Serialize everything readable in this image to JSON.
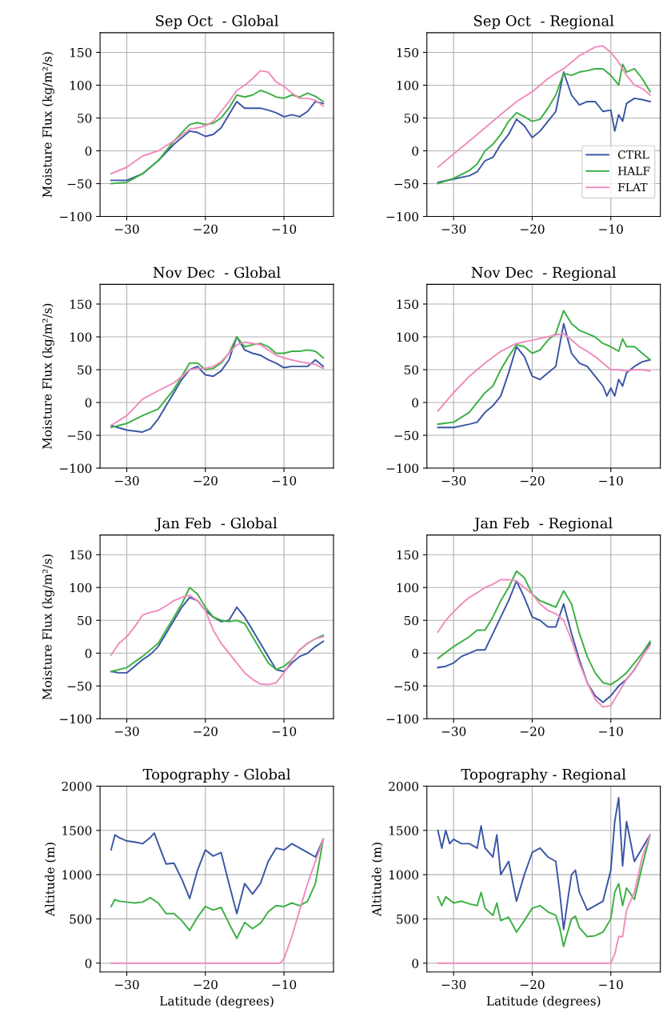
{
  "chart_data": [
    {
      "type": "line",
      "title": "Sep Oct  - Global",
      "ylabel": "Moisture Flux (kg/m²/s)",
      "xlim": [
        -33.4,
        -3.7
      ],
      "xticks": [
        -30,
        -20,
        -10
      ],
      "ylim": [
        -100,
        180
      ],
      "yticks": [
        -100,
        -50,
        0,
        50,
        100,
        150
      ],
      "grid": true,
      "legend": false,
      "series": [
        {
          "color": "#3a56a5",
          "x": [
            -32,
            -30,
            -28,
            -26,
            -24,
            -22,
            -21,
            -20,
            -19,
            -18,
            -17,
            -16,
            -15,
            -14,
            -13,
            -12,
            -11,
            -10,
            -9,
            -8,
            -7,
            -6,
            -5
          ],
          "values": [
            -45,
            -45,
            -35,
            -15,
            10,
            30,
            28,
            22,
            25,
            35,
            55,
            75,
            65,
            65,
            65,
            62,
            58,
            52,
            55,
            52,
            60,
            75,
            72
          ]
        },
        {
          "color": "#3cb043",
          "x": [
            -32,
            -30,
            -28,
            -26,
            -24,
            -22,
            -21,
            -20,
            -19,
            -18,
            -17,
            -16,
            -15,
            -14,
            -13,
            -12,
            -11,
            -10,
            -9,
            -8,
            -7,
            -6,
            -5
          ],
          "values": [
            -50,
            -48,
            -35,
            -15,
            15,
            40,
            43,
            40,
            42,
            50,
            65,
            85,
            82,
            85,
            92,
            88,
            82,
            80,
            85,
            82,
            88,
            83,
            75
          ]
        },
        {
          "color": "#f08cbe",
          "x": [
            -32,
            -30,
            -28,
            -26,
            -24,
            -22,
            -21,
            -20,
            -19,
            -18,
            -17,
            -16,
            -15,
            -14,
            -13,
            -12,
            -11,
            -10,
            -9,
            -8,
            -7,
            -6,
            -5
          ],
          "values": [
            -35,
            -25,
            -8,
            0,
            15,
            33,
            35,
            38,
            45,
            60,
            75,
            92,
            100,
            110,
            122,
            120,
            105,
            98,
            88,
            80,
            80,
            77,
            68
          ]
        }
      ]
    },
    {
      "type": "line",
      "title": "Sep Oct  - Regional",
      "xlim": [
        -33.4,
        -3.7
      ],
      "xticks": [
        -30,
        -20,
        -10
      ],
      "ylim": [
        -100,
        180
      ],
      "yticks": [
        -100,
        -50,
        0,
        50,
        100,
        150
      ],
      "grid": true,
      "legend": "lower right",
      "series": [
        {
          "name": "CTRL",
          "color": "#3a56a5",
          "x": [
            -32,
            -30,
            -28,
            -27,
            -26,
            -25,
            -24,
            -23,
            -22,
            -21,
            -20,
            -19,
            -18,
            -17,
            -16,
            -15,
            -14,
            -13,
            -12,
            -11,
            -10,
            -9.5,
            -9,
            -8.5,
            -8,
            -7,
            -6,
            -5
          ],
          "values": [
            -48,
            -43,
            -38,
            -32,
            -15,
            -10,
            10,
            25,
            48,
            38,
            20,
            30,
            45,
            60,
            120,
            85,
            70,
            75,
            75,
            60,
            62,
            30,
            55,
            45,
            72,
            80,
            78,
            75
          ]
        },
        {
          "name": "HALF",
          "color": "#3cb043",
          "x": [
            -32,
            -30,
            -28,
            -27,
            -26,
            -25,
            -24,
            -23,
            -22,
            -21,
            -20,
            -19,
            -18,
            -17,
            -16,
            -15,
            -14,
            -13,
            -12,
            -11,
            -10,
            -9,
            -8.5,
            -8,
            -7,
            -6,
            -5
          ],
          "values": [
            -50,
            -42,
            -30,
            -20,
            0,
            10,
            25,
            45,
            58,
            52,
            45,
            48,
            65,
            85,
            118,
            115,
            120,
            122,
            125,
            125,
            115,
            100,
            132,
            120,
            125,
            110,
            90
          ]
        },
        {
          "name": "FLAT",
          "color": "#f08cbe",
          "x": [
            -32,
            -30,
            -28,
            -26,
            -24,
            -22,
            -20,
            -18,
            -17,
            -16,
            -14,
            -12,
            -11,
            -10,
            -9,
            -8,
            -7,
            -6,
            -5
          ],
          "values": [
            -25,
            -5,
            15,
            35,
            55,
            75,
            90,
            110,
            118,
            125,
            145,
            158,
            160,
            150,
            135,
            115,
            100,
            95,
            85
          ]
        }
      ]
    },
    {
      "type": "line",
      "title": "Nov Dec  - Global",
      "ylabel": "Moisture Flux (kg/m²/s)",
      "xlim": [
        -33.4,
        -3.7
      ],
      "xticks": [
        -30,
        -20,
        -10
      ],
      "ylim": [
        -100,
        180
      ],
      "yticks": [
        -100,
        -50,
        0,
        50,
        100,
        150
      ],
      "grid": true,
      "legend": false,
      "series": [
        {
          "color": "#3a56a5",
          "x": [
            -32,
            -30,
            -28,
            -27,
            -26,
            -25,
            -24,
            -23,
            -22,
            -21,
            -20,
            -19,
            -18,
            -17,
            -16,
            -15,
            -14,
            -13,
            -12,
            -11,
            -10,
            -9,
            -8,
            -7,
            -6,
            -5
          ],
          "values": [
            -35,
            -42,
            -45,
            -40,
            -25,
            -5,
            15,
            35,
            50,
            55,
            42,
            40,
            48,
            65,
            100,
            80,
            75,
            72,
            65,
            60,
            53,
            55,
            55,
            55,
            65,
            55
          ]
        },
        {
          "color": "#3cb043",
          "x": [
            -32,
            -30,
            -28,
            -26,
            -24,
            -22,
            -21,
            -20,
            -19,
            -18,
            -17,
            -16,
            -15,
            -14,
            -13,
            -12,
            -11,
            -10,
            -9,
            -8,
            -7,
            -6,
            -5
          ],
          "values": [
            -38,
            -32,
            -20,
            -10,
            20,
            60,
            60,
            50,
            52,
            60,
            75,
            100,
            85,
            88,
            90,
            85,
            75,
            75,
            78,
            78,
            80,
            78,
            68
          ]
        },
        {
          "color": "#f08cbe",
          "x": [
            -32,
            -30,
            -28,
            -26,
            -24,
            -22,
            -21,
            -20,
            -19,
            -18,
            -17,
            -16,
            -15,
            -14,
            -13,
            -12,
            -11,
            -10,
            -9,
            -8,
            -7,
            -6,
            -5
          ],
          "values": [
            -35,
            -20,
            5,
            18,
            30,
            50,
            52,
            52,
            55,
            62,
            75,
            88,
            92,
            90,
            88,
            80,
            72,
            68,
            65,
            62,
            60,
            58,
            52
          ]
        }
      ]
    },
    {
      "type": "line",
      "title": "Nov Dec  - Regional",
      "xlim": [
        -33.4,
        -3.7
      ],
      "xticks": [
        -30,
        -20,
        -10
      ],
      "ylim": [
        -100,
        180
      ],
      "yticks": [
        -100,
        -50,
        0,
        50,
        100,
        150
      ],
      "grid": true,
      "legend": false,
      "series": [
        {
          "color": "#3a56a5",
          "x": [
            -32,
            -30,
            -28,
            -27,
            -26,
            -25,
            -24,
            -23,
            -22,
            -21,
            -20,
            -19,
            -18,
            -17,
            -16,
            -15,
            -14,
            -13,
            -12,
            -11,
            -10.5,
            -10,
            -9.5,
            -9,
            -8.5,
            -8,
            -7,
            -6,
            -5
          ],
          "values": [
            -38,
            -38,
            -33,
            -30,
            -15,
            -5,
            10,
            45,
            85,
            70,
            40,
            35,
            45,
            55,
            120,
            75,
            60,
            55,
            40,
            25,
            10,
            22,
            10,
            35,
            25,
            45,
            55,
            62,
            65
          ]
        },
        {
          "color": "#3cb043",
          "x": [
            -32,
            -30,
            -28,
            -26,
            -25,
            -24,
            -23,
            -22,
            -21,
            -20,
            -19,
            -18,
            -17,
            -16,
            -15,
            -14,
            -13,
            -12,
            -11,
            -10,
            -9,
            -8.5,
            -8,
            -7,
            -6,
            -5
          ],
          "values": [
            -33,
            -30,
            -15,
            15,
            25,
            50,
            70,
            88,
            85,
            75,
            80,
            95,
            105,
            140,
            120,
            110,
            105,
            100,
            90,
            85,
            78,
            97,
            85,
            85,
            75,
            65
          ]
        },
        {
          "color": "#f08cbe",
          "x": [
            -32,
            -30,
            -28,
            -26,
            -24,
            -22,
            -20,
            -18,
            -17,
            -16,
            -15,
            -14,
            -13,
            -12,
            -11,
            -10,
            -9,
            -8,
            -7,
            -6,
            -5
          ],
          "values": [
            -13,
            15,
            40,
            60,
            78,
            90,
            95,
            100,
            103,
            105,
            95,
            85,
            78,
            70,
            60,
            50,
            50,
            48,
            50,
            50,
            48
          ]
        }
      ]
    },
    {
      "type": "line",
      "title": "Jan Feb  - Global",
      "ylabel": "Moisture Flux (kg/m²/s)",
      "xlim": [
        -33.4,
        -3.7
      ],
      "xticks": [
        -30,
        -20,
        -10
      ],
      "ylim": [
        -100,
        180
      ],
      "yticks": [
        -100,
        -50,
        0,
        50,
        100,
        150
      ],
      "grid": true,
      "legend": false,
      "series": [
        {
          "color": "#3a56a5",
          "x": [
            -32,
            -31,
            -30,
            -29,
            -28,
            -27,
            -26,
            -25,
            -24,
            -23,
            -22,
            -21,
            -20,
            -19,
            -18,
            -17,
            -16,
            -15,
            -14,
            -13,
            -12,
            -11,
            -10,
            -9,
            -8,
            -7,
            -6,
            -5
          ],
          "values": [
            -28,
            -30,
            -30,
            -20,
            -10,
            -2,
            10,
            30,
            50,
            70,
            85,
            80,
            65,
            55,
            48,
            50,
            70,
            55,
            35,
            15,
            -5,
            -25,
            -28,
            -15,
            -5,
            0,
            10,
            18
          ]
        },
        {
          "color": "#3cb043",
          "x": [
            -32,
            -30,
            -28,
            -26,
            -25,
            -24,
            -23,
            -22,
            -21,
            -20,
            -19,
            -18,
            -17,
            -16,
            -15,
            -14,
            -13,
            -12,
            -11,
            -10,
            -9,
            -8,
            -7,
            -6,
            -5
          ],
          "values": [
            -28,
            -22,
            -5,
            15,
            35,
            55,
            75,
            100,
            90,
            70,
            55,
            50,
            48,
            50,
            45,
            25,
            5,
            -15,
            -25,
            -20,
            -10,
            5,
            15,
            22,
            27
          ]
        },
        {
          "color": "#f08cbe",
          "x": [
            -32,
            -31,
            -30,
            -29,
            -28,
            -27,
            -26,
            -25,
            -24,
            -23,
            -22,
            -21,
            -20,
            -19,
            -18,
            -17,
            -16,
            -15,
            -14,
            -13,
            -12,
            -11,
            -10,
            -9,
            -8,
            -7,
            -6,
            -5
          ],
          "values": [
            -3,
            15,
            25,
            40,
            58,
            62,
            65,
            72,
            80,
            85,
            88,
            80,
            65,
            35,
            15,
            0,
            -15,
            -30,
            -40,
            -47,
            -48,
            -45,
            -30,
            -10,
            5,
            15,
            22,
            25
          ]
        }
      ]
    },
    {
      "type": "line",
      "title": "Jan Feb  - Regional",
      "xlim": [
        -33.4,
        -3.7
      ],
      "xticks": [
        -30,
        -20,
        -10
      ],
      "ylim": [
        -100,
        180
      ],
      "yticks": [
        -100,
        -50,
        0,
        50,
        100,
        150
      ],
      "grid": true,
      "legend": false,
      "series": [
        {
          "color": "#3a56a5",
          "x": [
            -32,
            -31,
            -30,
            -29,
            -28,
            -27,
            -26,
            -25,
            -24,
            -23,
            -22,
            -21,
            -20,
            -19,
            -18,
            -17,
            -16,
            -15,
            -14,
            -13,
            -12,
            -11,
            -10,
            -9,
            -8,
            -7,
            -6,
            -5
          ],
          "values": [
            -22,
            -20,
            -15,
            -5,
            0,
            5,
            5,
            30,
            55,
            80,
            110,
            85,
            55,
            50,
            40,
            40,
            75,
            30,
            -10,
            -45,
            -65,
            -75,
            -65,
            -50,
            -40,
            -25,
            -5,
            15
          ]
        },
        {
          "color": "#3cb043",
          "x": [
            -32,
            -30,
            -28,
            -27,
            -26,
            -25,
            -24,
            -23,
            -22,
            -21,
            -20,
            -19,
            -18,
            -17,
            -16,
            -15,
            -14,
            -13,
            -12,
            -11,
            -10,
            -9,
            -8,
            -7,
            -6,
            -5
          ],
          "values": [
            -8,
            10,
            25,
            35,
            35,
            55,
            80,
            100,
            125,
            115,
            90,
            80,
            75,
            70,
            95,
            75,
            30,
            -5,
            -30,
            -45,
            -48,
            -40,
            -30,
            -15,
            0,
            18
          ]
        },
        {
          "color": "#f08cbe",
          "x": [
            -32,
            -31,
            -30,
            -29,
            -28,
            -27,
            -26,
            -25,
            -24,
            -23,
            -22,
            -21,
            -20,
            -19,
            -18,
            -17,
            -16,
            -15,
            -14,
            -13,
            -12,
            -11,
            -10,
            -9,
            -8,
            -7,
            -6,
            -5
          ],
          "values": [
            32,
            50,
            63,
            75,
            85,
            92,
            100,
            105,
            112,
            112,
            110,
            100,
            90,
            75,
            65,
            60,
            50,
            20,
            -15,
            -45,
            -70,
            -82,
            -80,
            -60,
            -40,
            -25,
            -5,
            12
          ]
        }
      ]
    },
    {
      "type": "line",
      "title": "Topography - Global",
      "xlabel": "Latitude (degrees)",
      "ylabel": "Altitude (m)",
      "xlim": [
        -33.4,
        -3.7
      ],
      "xticks": [
        -30,
        -20,
        -10
      ],
      "ylim": [
        -100,
        2000
      ],
      "yticks": [
        0,
        500,
        1000,
        1500,
        2000
      ],
      "grid": true,
      "legend": false,
      "series": [
        {
          "color": "#3a56a5",
          "x": [
            -32,
            -31.5,
            -31,
            -30,
            -29,
            -28,
            -27,
            -26.5,
            -26,
            -25,
            -24,
            -23,
            -22,
            -21,
            -20,
            -19,
            -18,
            -17,
            -16,
            -15,
            -14,
            -13,
            -12,
            -11,
            -10,
            -9,
            -8,
            -7,
            -6,
            -5
          ],
          "values": [
            1280,
            1450,
            1420,
            1380,
            1370,
            1350,
            1420,
            1470,
            1350,
            1120,
            1130,
            950,
            730,
            1050,
            1280,
            1210,
            1250,
            900,
            560,
            900,
            780,
            900,
            1150,
            1300,
            1280,
            1350,
            1300,
            1250,
            1200,
            1400
          ]
        },
        {
          "color": "#3cb043",
          "x": [
            -32,
            -31.5,
            -31,
            -30,
            -29,
            -28,
            -27,
            -26,
            -25,
            -24,
            -23,
            -22,
            -21,
            -20,
            -19,
            -18,
            -17,
            -16,
            -15,
            -14,
            -13,
            -12,
            -11,
            -10,
            -9,
            -8,
            -7,
            -6,
            -5
          ],
          "values": [
            640,
            720,
            700,
            690,
            680,
            690,
            740,
            680,
            560,
            560,
            480,
            370,
            520,
            640,
            600,
            630,
            450,
            280,
            460,
            390,
            450,
            580,
            650,
            640,
            680,
            650,
            700,
            900,
            1400
          ]
        },
        {
          "color": "#f08cbe",
          "x": [
            -32,
            -20,
            -10.5,
            -10,
            -9,
            -8,
            -7,
            -6,
            -5
          ],
          "values": [
            0,
            0,
            0,
            50,
            300,
            600,
            900,
            1150,
            1400
          ]
        }
      ]
    },
    {
      "type": "line",
      "title": "Topography - Regional",
      "xlabel": "Latitude (degrees)",
      "ylabel": "Altitude (m)",
      "xlim": [
        -33.4,
        -3.7
      ],
      "xticks": [
        -30,
        -20,
        -10
      ],
      "ylim": [
        -100,
        2000
      ],
      "yticks": [
        0,
        500,
        1000,
        1500,
        2000
      ],
      "grid": true,
      "legend": false,
      "series": [
        {
          "color": "#3a56a5",
          "x": [
            -32,
            -31.5,
            -31,
            -30.5,
            -30,
            -29,
            -28,
            -27,
            -26.5,
            -26,
            -25,
            -24.5,
            -24,
            -23,
            -22,
            -21,
            -20,
            -19,
            -18,
            -17,
            -16.5,
            -16,
            -15.5,
            -15,
            -14.5,
            -14,
            -13,
            -12,
            -11,
            -10,
            -9.5,
            -9,
            -8.5,
            -8,
            -7,
            -6,
            -5
          ],
          "values": [
            1500,
            1300,
            1500,
            1350,
            1400,
            1350,
            1350,
            1300,
            1550,
            1300,
            1200,
            1450,
            1000,
            1150,
            700,
            1000,
            1250,
            1300,
            1200,
            1150,
            800,
            380,
            700,
            1000,
            1050,
            800,
            600,
            650,
            700,
            1050,
            1600,
            1870,
            1100,
            1600,
            1150,
            1300,
            1450
          ]
        },
        {
          "color": "#3cb043",
          "x": [
            -32,
            -31.5,
            -31,
            -30,
            -29,
            -28,
            -27,
            -26.5,
            -26,
            -25,
            -24.5,
            -24,
            -23,
            -22,
            -21,
            -20,
            -19,
            -18,
            -17,
            -16.5,
            -16,
            -15.5,
            -15,
            -14.5,
            -14,
            -13,
            -12,
            -11,
            -10,
            -9.5,
            -9,
            -8.5,
            -8,
            -7,
            -6,
            -5
          ],
          "values": [
            750,
            650,
            750,
            680,
            700,
            670,
            650,
            800,
            620,
            540,
            680,
            480,
            520,
            350,
            480,
            620,
            650,
            580,
            540,
            400,
            190,
            350,
            500,
            530,
            400,
            300,
            310,
            350,
            500,
            800,
            900,
            650,
            850,
            720,
            1100,
            1450
          ]
        },
        {
          "color": "#f08cbe",
          "x": [
            -32,
            -20,
            -10,
            -9.5,
            -9,
            -8.5,
            -8,
            -7,
            -6,
            -5
          ],
          "values": [
            0,
            0,
            0,
            100,
            300,
            300,
            600,
            800,
            1200,
            1450
          ]
        }
      ]
    }
  ]
}
